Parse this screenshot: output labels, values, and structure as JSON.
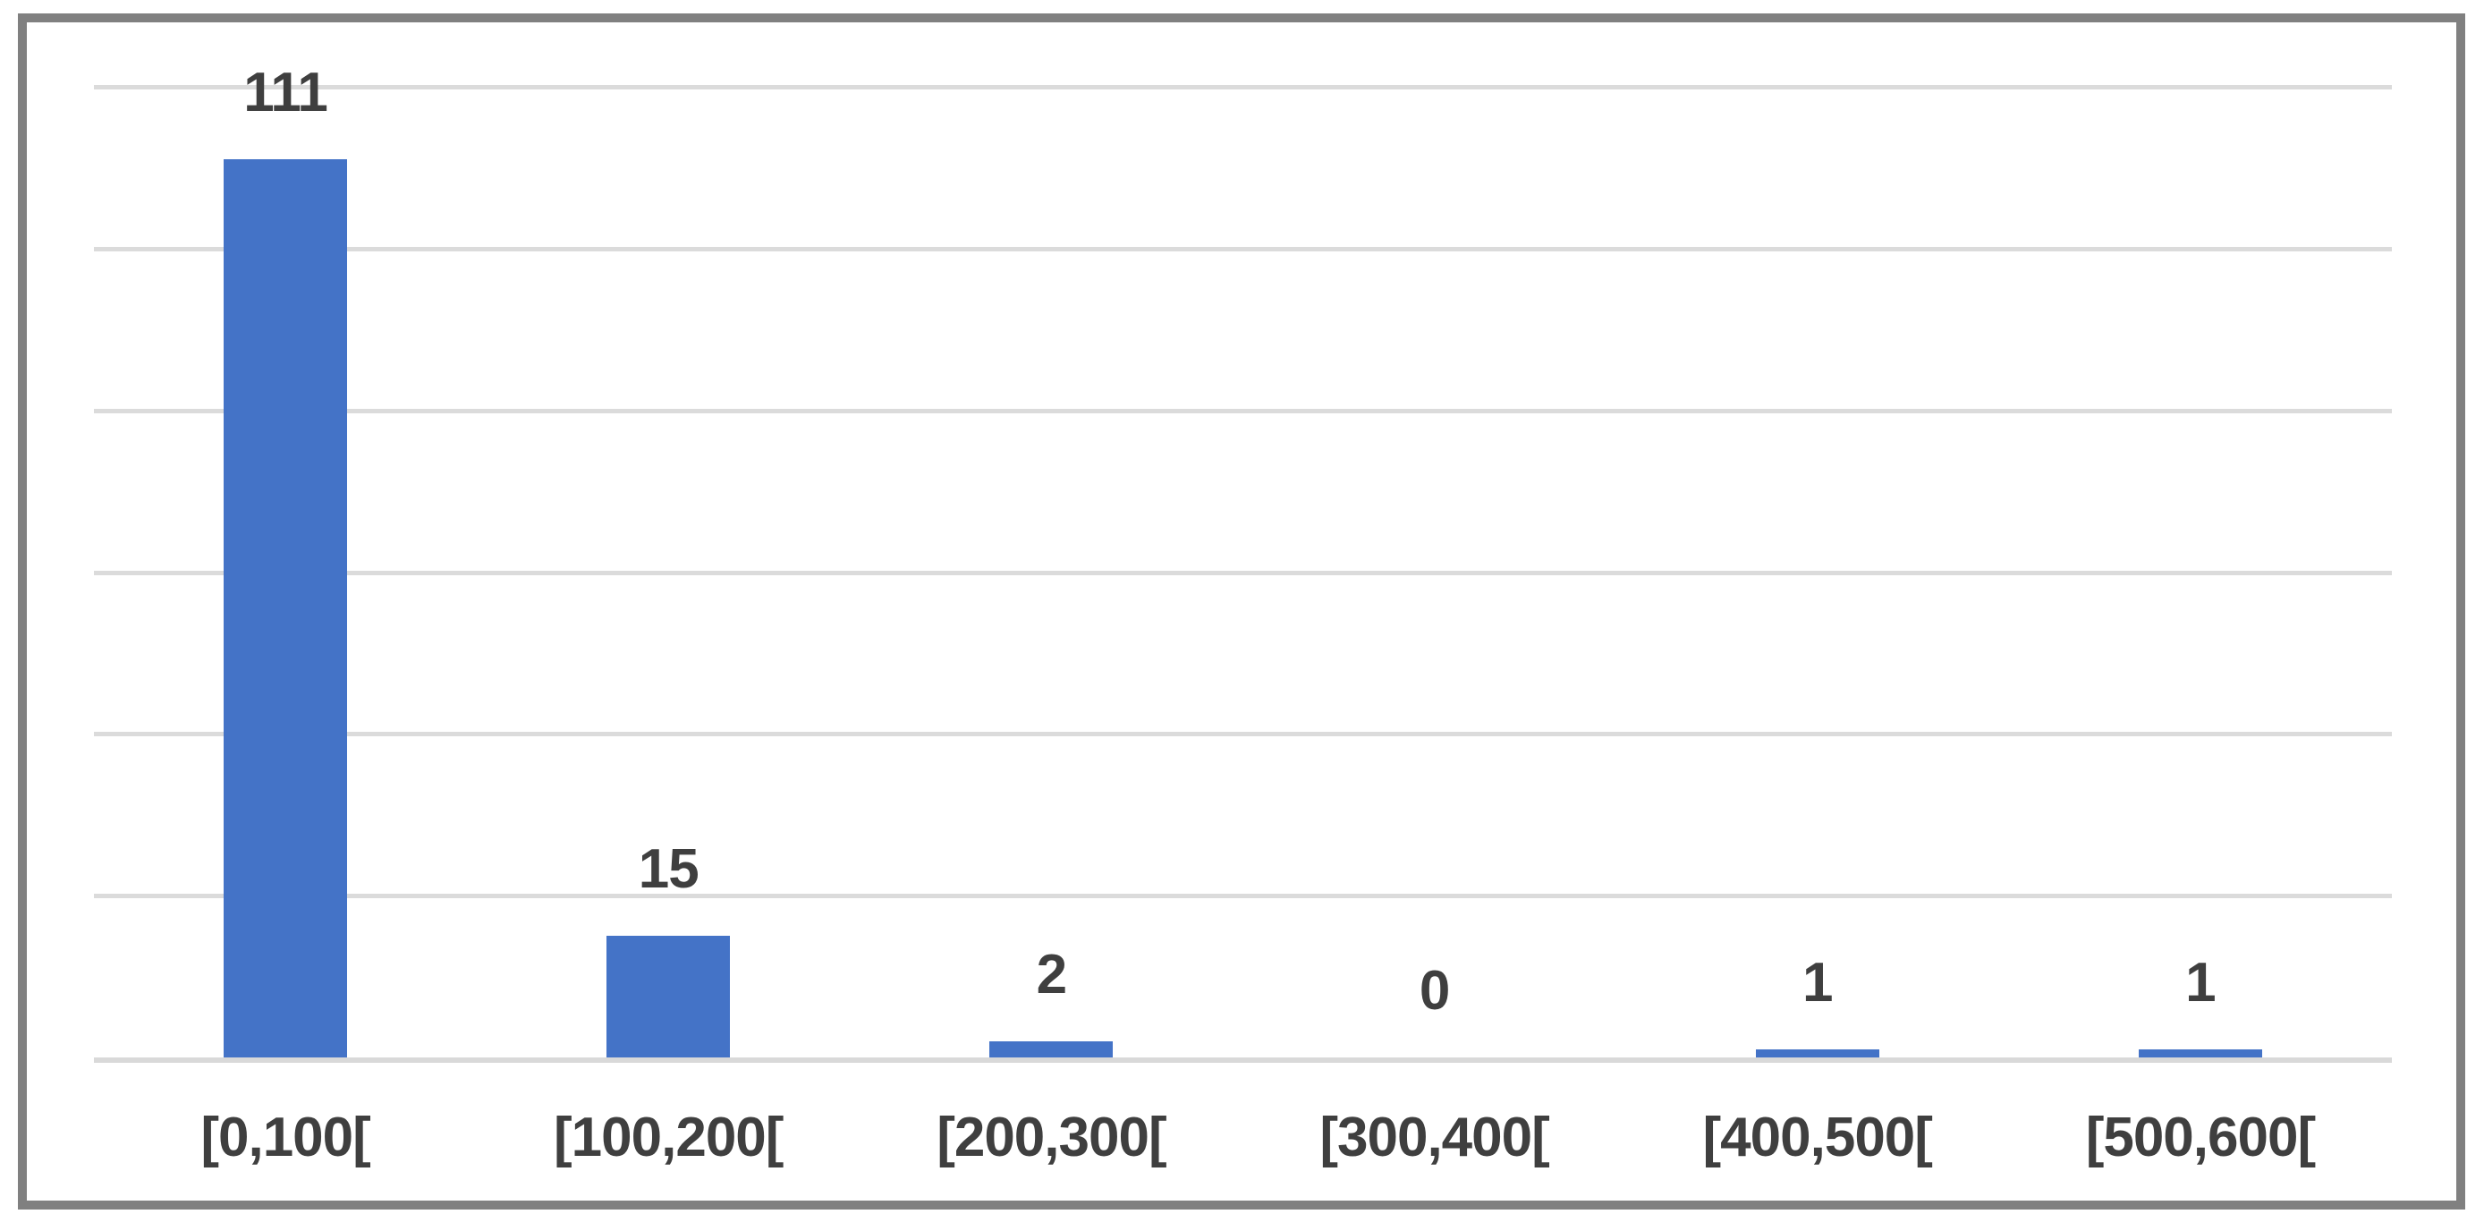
{
  "chart_data": {
    "type": "bar",
    "categories": [
      "[0,100[",
      "[100,200[",
      "[200,300[",
      "[300,400[",
      "[400,500[",
      "[500,600["
    ],
    "values": [
      111,
      15,
      2,
      0,
      1,
      1
    ],
    "title": "",
    "xlabel": "",
    "ylabel": "",
    "ylim": [
      0,
      120
    ],
    "gridline_step": 20,
    "grid": true,
    "legend_position": "none",
    "y_axis_labels_visible": false,
    "data_labels_visible": true
  },
  "style": {
    "bar_color": "#4473C7",
    "gridline_color": "#DBDBDB",
    "axis_line_color": "#D9D9D9",
    "border_color": "#808080",
    "label_color": "#3F3F3F",
    "background_color": "#FFFFFF"
  }
}
